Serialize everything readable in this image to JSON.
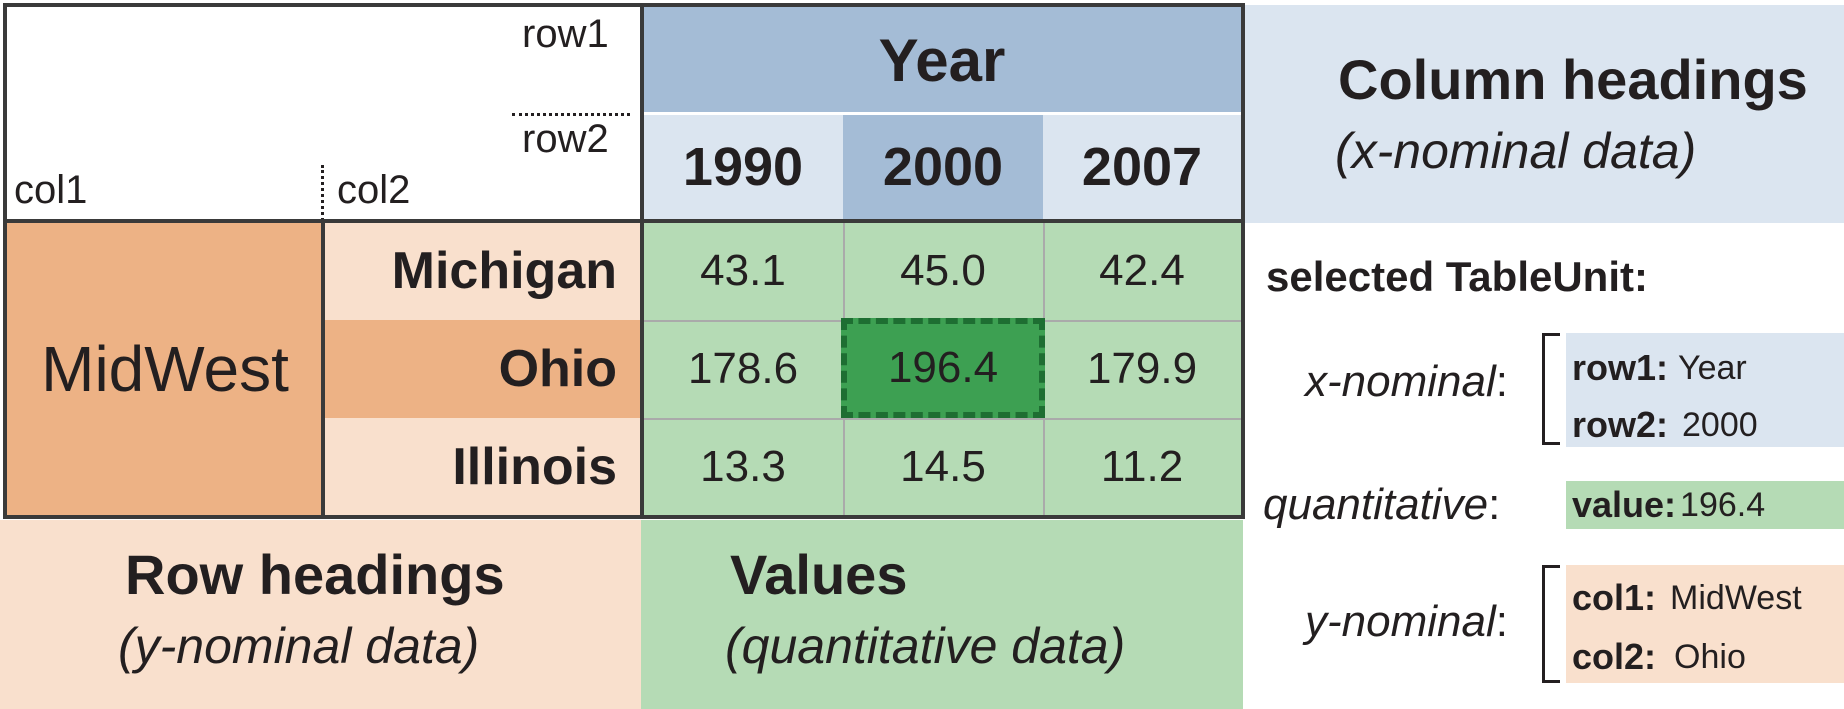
{
  "table": {
    "row1_label": "row1",
    "row2_label": "row2",
    "col1_label": "col1",
    "col2_label": "col2",
    "column_group": "Year",
    "columns": [
      "1990",
      "2000",
      "2007"
    ],
    "row_group": "MidWest",
    "rows": [
      {
        "name": "Michigan",
        "values": [
          "43.1",
          "45.0",
          "42.4"
        ]
      },
      {
        "name": "Ohio",
        "values": [
          "178.6",
          "196.4",
          "179.9"
        ]
      },
      {
        "name": "Illinois",
        "values": [
          "13.3",
          "14.5",
          "11.2"
        ]
      }
    ]
  },
  "legends": {
    "column_headings": {
      "title": "Column headings",
      "subtitle": "(x-nominal data)"
    },
    "row_headings": {
      "title": "Row headings",
      "subtitle": "(y-nominal data)"
    },
    "values": {
      "title": "Values",
      "subtitle": "(quantitative data)"
    }
  },
  "selected": {
    "title": "selected TableUnit:",
    "x_nominal_label": "x-nominal",
    "row1_key": "row1:",
    "row1_value": "Year",
    "row2_key": "row2:",
    "row2_value": "2000",
    "quantitative_label": "quantitative",
    "value_key": "value:",
    "value_value": "196.4",
    "y_nominal_label": "y-nominal",
    "col1_key": "col1:",
    "col1_value": "MidWest",
    "col2_key": "col2:",
    "col2_value": "Ohio",
    "colon": ":"
  },
  "colors": {
    "column_heading_bg": "#dbe5f0",
    "column_heading_dark": "#a4bcd6",
    "row_heading_bg": "#f9e0cd",
    "row_heading_dark": "#edb285",
    "values_bg": "#b5dbb5",
    "selected_cell": "#3da052",
    "selected_border": "#1e6e32"
  }
}
